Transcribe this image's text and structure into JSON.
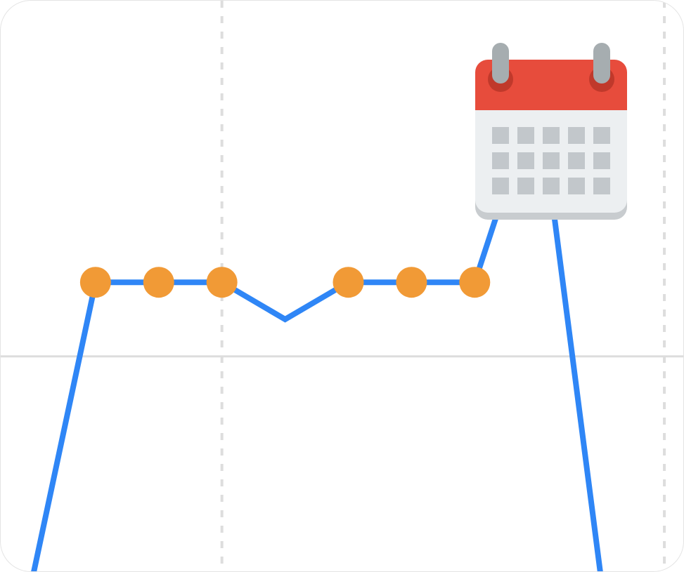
{
  "chart_data": {
    "type": "line",
    "title": "",
    "xlabel": "",
    "ylabel": "",
    "x": [
      1,
      2,
      3,
      4,
      5,
      6,
      7,
      8,
      9,
      10
    ],
    "series": [
      {
        "values": [
          -3,
          1,
          1,
          1,
          0.5,
          1,
          1,
          1,
          3.6,
          -3
        ],
        "markers": [
          false,
          true,
          true,
          true,
          false,
          true,
          true,
          true,
          true,
          false
        ]
      }
    ],
    "xlim": [
      0.5,
      11.3
    ],
    "ylim": [
      -2.9,
      4.8
    ],
    "grid": {
      "horizontal_lines": [
        0
      ],
      "vertical_dashed_lines": [
        4,
        11
      ]
    },
    "colors": {
      "line": "#2f86f6",
      "marker": "#f19a36",
      "grid": "#dddddd"
    },
    "icon": "calendar-icon"
  }
}
